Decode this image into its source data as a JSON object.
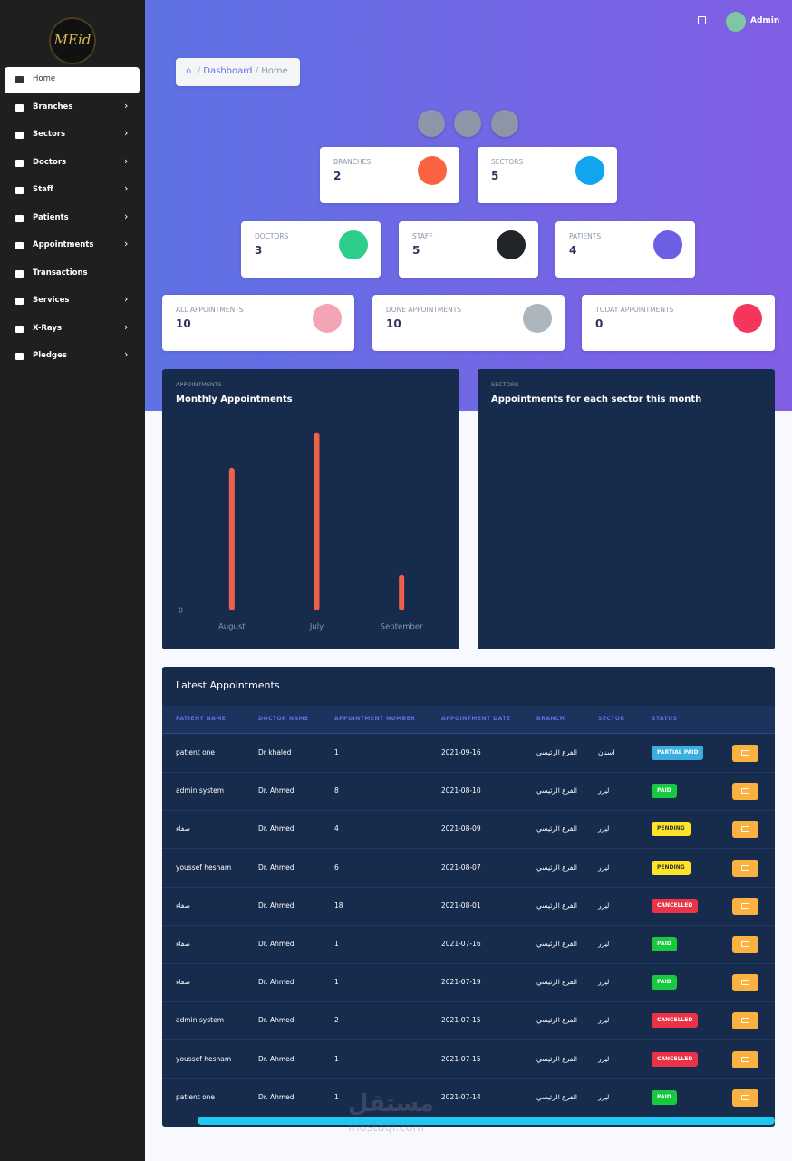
{
  "sidebar": {
    "logo": "MEid",
    "items": [
      {
        "label": "Home",
        "sub": false
      },
      {
        "label": "Branches",
        "sub": true
      },
      {
        "label": "Sectors",
        "sub": true
      },
      {
        "label": "Doctors",
        "sub": true
      },
      {
        "label": "Staff",
        "sub": true
      },
      {
        "label": "Patients",
        "sub": true
      },
      {
        "label": "Appointments",
        "sub": true
      },
      {
        "label": "Transactions",
        "sub": false
      },
      {
        "label": "Services",
        "sub": true
      },
      {
        "label": "X-Rays",
        "sub": true
      },
      {
        "label": "Pledges",
        "sub": true
      }
    ]
  },
  "header": {
    "user": "Admin"
  },
  "breadcrumb": [
    "Dashboard",
    "Home"
  ],
  "stats": [
    {
      "label": "BRANCHES",
      "value": "2",
      "color": "#fb6340"
    },
    {
      "label": "SECTORS",
      "value": "5",
      "color": "#11a5ef"
    },
    {
      "label": "DOCTORS",
      "value": "3",
      "color": "#2dce89"
    },
    {
      "label": "STAFF",
      "value": "5",
      "color": "#212529"
    },
    {
      "label": "PATIENTS",
      "value": "4",
      "color": "#6b5fe4"
    },
    {
      "label": "ALL APPOINTMENTS",
      "value": "10",
      "color": "#f3a4b5"
    },
    {
      "label": "DONE APPOINTMENTS",
      "value": "10",
      "color": "#adb5bd"
    },
    {
      "label": "TODAY APPOINTMENTS",
      "value": "0",
      "color": "#f5365c"
    }
  ],
  "chart_data": [
    {
      "type": "bar",
      "subtitle": "APPOINTMENTS",
      "title": "Monthly Appointments",
      "categories": [
        "August",
        "July",
        "September"
      ],
      "values": [
        4,
        5,
        1
      ],
      "color": "#f0614a",
      "ylim": [
        0,
        5.5
      ],
      "yticks": [
        0
      ]
    },
    {
      "type": "pie",
      "subtitle": "SECTORS",
      "title": "Appointments for each sector this month"
    }
  ],
  "table": {
    "title": "Latest Appointments",
    "columns": [
      "PATIENT NAME",
      "DOCTOR NAME",
      "APPOINTMENT NUMBER",
      "APPOINTMENT DATE",
      "BRANCH",
      "SECTOR",
      "STATUS"
    ],
    "rows": [
      [
        "patient one",
        "Dr khaled",
        "1",
        "2021-09-16",
        "الفرع الرئيسي",
        "اسنان",
        "PARTIAL PAID"
      ],
      [
        "admin system",
        "Dr. Ahmed",
        "8",
        "2021-08-10",
        "الفرع الرئيسي",
        "ليزر",
        "PAID"
      ],
      [
        "صفاء",
        "Dr. Ahmed",
        "4",
        "2021-08-09",
        "الفرع الرئيسي",
        "ليزر",
        "PENDING"
      ],
      [
        "youssef hesham",
        "Dr. Ahmed",
        "6",
        "2021-08-07",
        "الفرع الرئيسي",
        "ليزر",
        "PENDING"
      ],
      [
        "صفاء",
        "Dr. Ahmed",
        "18",
        "2021-08-01",
        "الفرع الرئيسي",
        "ليزر",
        "CANCELLED"
      ],
      [
        "صفاء",
        "Dr. Ahmed",
        "1",
        "2021-07-16",
        "الفرع الرئيسي",
        "ليزر",
        "PAID"
      ],
      [
        "صفاء",
        "Dr. Ahmed",
        "1",
        "2021-07-19",
        "الفرع الرئيسي",
        "ليزر",
        "PAID"
      ],
      [
        "admin system",
        "Dr. Ahmed",
        "2",
        "2021-07-15",
        "الفرع الرئيسي",
        "ليزر",
        "CANCELLED"
      ],
      [
        "youssef hesham",
        "Dr. Ahmed",
        "1",
        "2021-07-15",
        "الفرع الرئيسي",
        "ليزر",
        "CANCELLED"
      ],
      [
        "patient one",
        "Dr. Ahmed",
        "1",
        "2021-07-14",
        "الفرع الرئيسي",
        "ليزر",
        "PAID"
      ]
    ],
    "status_colors": [
      "#3aaee0",
      "#18c93f",
      "#fde428",
      "#fde428",
      "#ea3347",
      "#18c93f",
      "#18c93f",
      "#ea3347",
      "#ea3347",
      "#18c93f"
    ]
  },
  "watermark": {
    "ar": "مستقل",
    "en": "mostaqi.com"
  }
}
